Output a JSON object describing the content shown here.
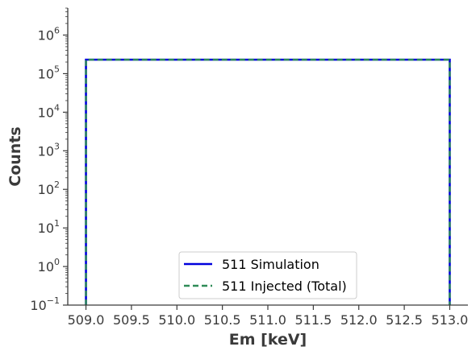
{
  "chart_data": {
    "type": "line",
    "subtype": "step-histogram",
    "title": "",
    "xlabel": "Em [keV]",
    "ylabel": "Counts",
    "xlim": [
      508.8,
      513.2
    ],
    "ylim_log10": [
      -1,
      6.7
    ],
    "yscale": "log",
    "x_ticks": [
      509.0,
      509.5,
      510.0,
      510.5,
      511.0,
      511.5,
      512.0,
      512.5,
      513.0
    ],
    "x_tick_labels": [
      "509.0",
      "509.5",
      "510.0",
      "510.5",
      "511.0",
      "511.5",
      "512.0",
      "512.5",
      "513.0"
    ],
    "y_tick_labels": [
      {
        "exp": -1,
        "base": "10",
        "sup": "−1"
      },
      {
        "exp": 0,
        "base": "10",
        "sup": "0"
      },
      {
        "exp": 1,
        "base": "10",
        "sup": "1"
      },
      {
        "exp": 2,
        "base": "10",
        "sup": "2"
      },
      {
        "exp": 3,
        "base": "10",
        "sup": "3"
      },
      {
        "exp": 4,
        "base": "10",
        "sup": "4"
      },
      {
        "exp": 5,
        "base": "10",
        "sup": "5"
      },
      {
        "exp": 6,
        "base": "10",
        "sup": "6"
      }
    ],
    "grid": false,
    "legend_position": "lower center",
    "series": [
      {
        "name": "511 Simulation",
        "color": "#0000dd",
        "style": "solid",
        "steps": [
          {
            "x0": 509.0,
            "x1": 513.0,
            "y": 230000
          }
        ]
      },
      {
        "name": "511 Injected (Total)",
        "color": "#2e8b57",
        "style": "dashed",
        "steps": [
          {
            "x0": 509.0,
            "x1": 513.0,
            "y": 230000
          }
        ]
      }
    ]
  }
}
